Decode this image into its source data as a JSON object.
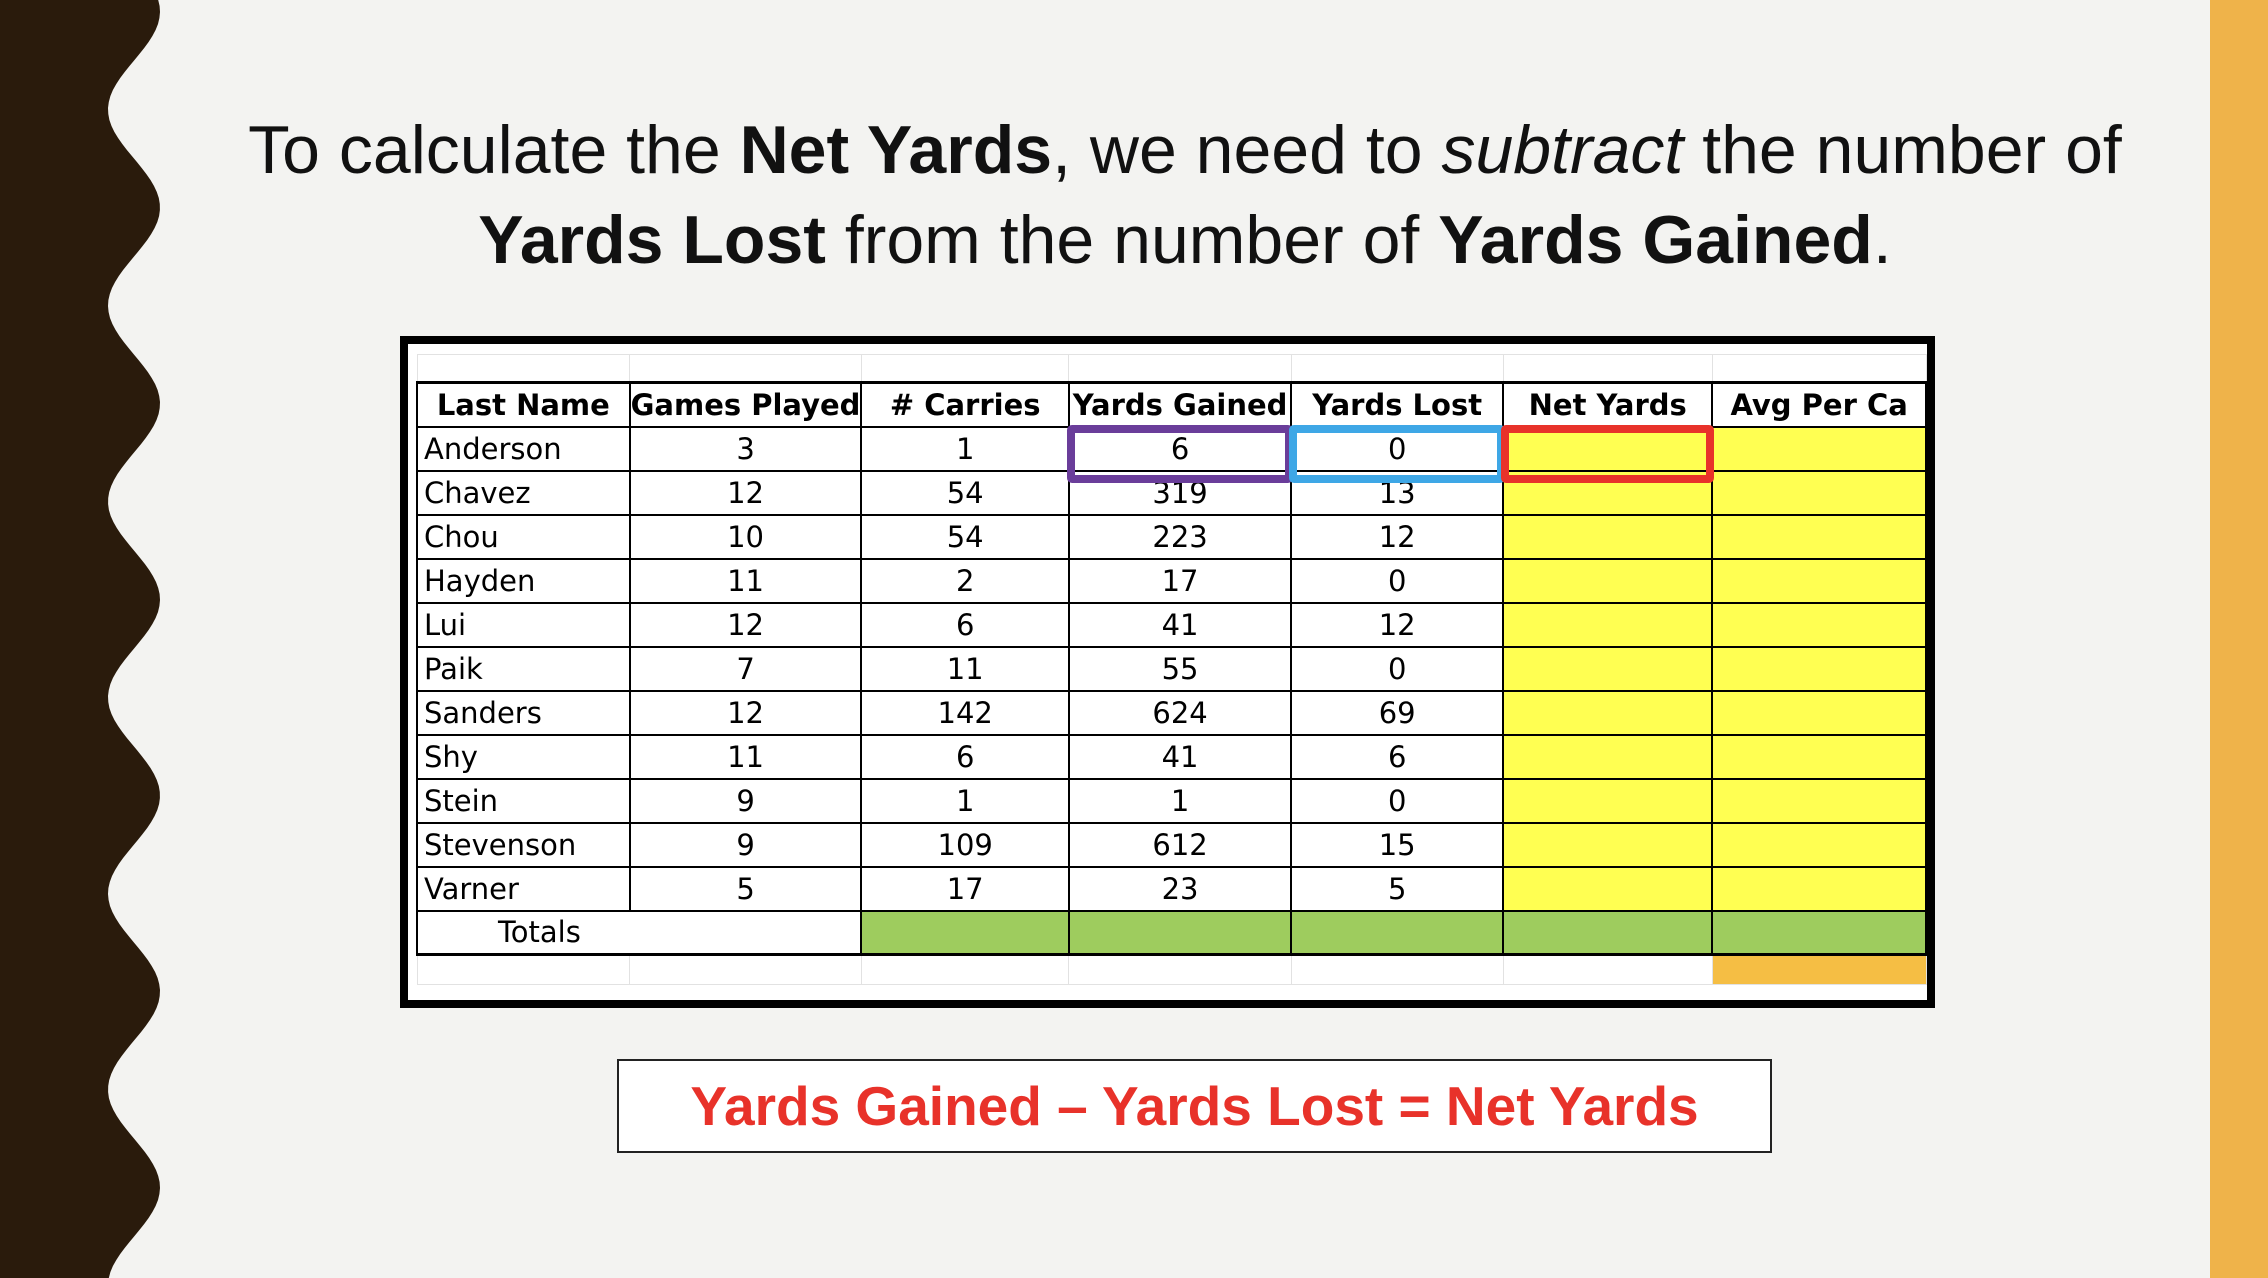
{
  "colors": {
    "left_wave": "#2a1b0c",
    "right_bar": "#efb34a",
    "yellow_fill": "#ffff52",
    "green_fill": "#9ecc5e",
    "orange_fill": "#f5be44",
    "purple_highlight": "#6a3d9a",
    "blue_highlight": "#3ea7e6",
    "red_highlight": "#e8322a",
    "formula_text": "#e8322a"
  },
  "heading": {
    "part1": "To calculate the ",
    "bold1": "Net Yards",
    "part2": ", we need to ",
    "italic1": "subtract",
    "part3": " the number of ",
    "bold2": "Yards Lost",
    "part4": " from the number of ",
    "bold3": "Yards Gained",
    "part5": "."
  },
  "table": {
    "headers": [
      "Last Name",
      "Games Played",
      "# Carries",
      "Yards Gained",
      "Yards Lost",
      "Net Yards",
      "Avg Per Ca"
    ],
    "rows": [
      [
        "Anderson",
        "3",
        "1",
        "6",
        "0"
      ],
      [
        "Chavez",
        "12",
        "54",
        "319",
        "13"
      ],
      [
        "Chou",
        "10",
        "54",
        "223",
        "12"
      ],
      [
        "Hayden",
        "11",
        "2",
        "17",
        "0"
      ],
      [
        "Lui",
        "12",
        "6",
        "41",
        "12"
      ],
      [
        "Paik",
        "7",
        "11",
        "55",
        "0"
      ],
      [
        "Sanders",
        "12",
        "142",
        "624",
        "69"
      ],
      [
        "Shy",
        "11",
        "6",
        "41",
        "6"
      ],
      [
        "Stein",
        "9",
        "1",
        "1",
        "0"
      ],
      [
        "Stevenson",
        "9",
        "109",
        "612",
        "15"
      ],
      [
        "Varner",
        "5",
        "17",
        "23",
        "5"
      ]
    ],
    "totals_label": "Totals"
  },
  "formula": "Yards Gained – Yards Lost = Net Yards"
}
